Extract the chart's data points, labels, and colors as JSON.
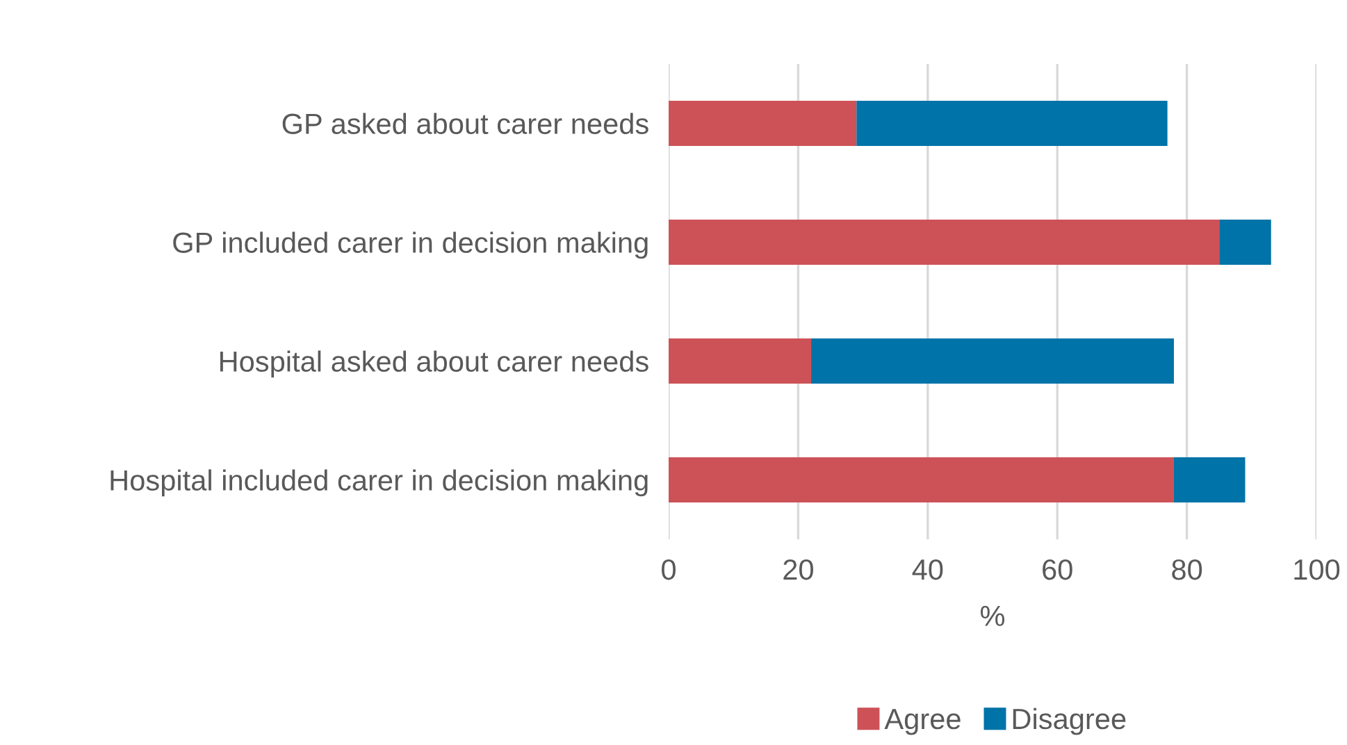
{
  "chart_data": {
    "type": "bar",
    "orientation": "horizontal",
    "stacked": true,
    "xlabel": "%",
    "categories": [
      "GP asked about carer needs",
      "GP included carer in decision making",
      "Hospital asked about carer needs",
      "Hospital included carer in decision making"
    ],
    "series": [
      {
        "name": "Agree",
        "color": "#cd5257",
        "values": [
          29,
          85,
          22,
          78
        ]
      },
      {
        "name": "Disagree",
        "color": "#0073a8",
        "values": [
          48,
          8,
          56,
          11
        ]
      }
    ],
    "xlim": [
      0,
      100
    ],
    "xticks": [
      0,
      20,
      40,
      60,
      80,
      100
    ],
    "grid": "x",
    "legend": "bottom"
  }
}
